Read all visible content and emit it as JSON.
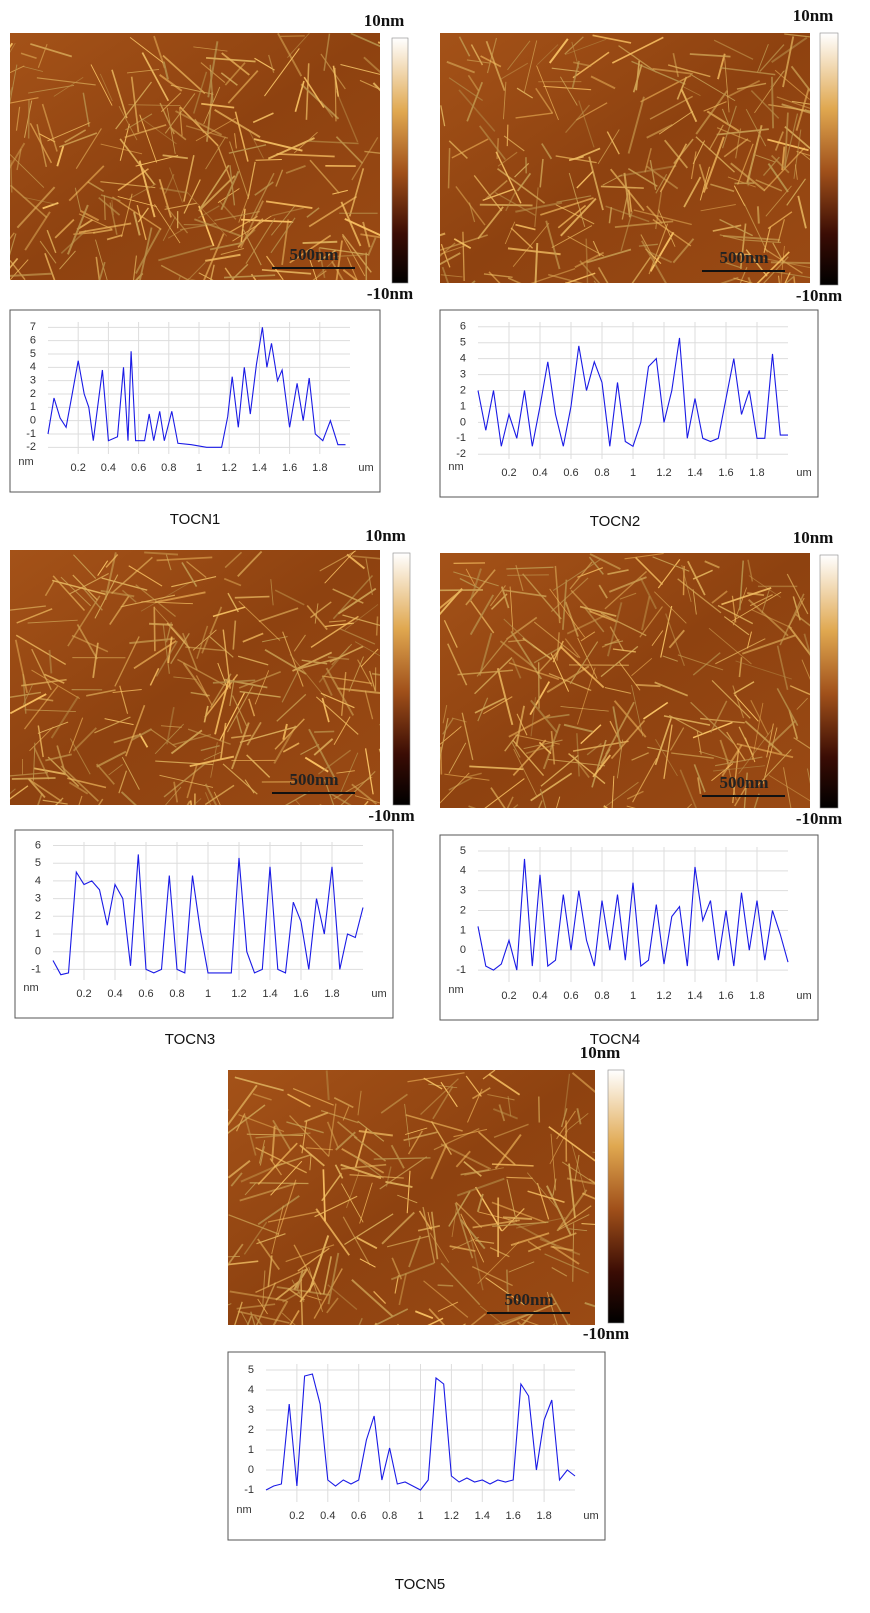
{
  "chart_data": [
    {
      "type": "line",
      "title": "TOCN1",
      "x_label": "um",
      "y_label": "nm",
      "x": [
        0,
        0.04,
        0.08,
        0.12,
        0.16,
        0.2,
        0.24,
        0.27,
        0.3,
        0.36,
        0.4,
        0.46,
        0.5,
        0.53,
        0.55,
        0.58,
        0.64,
        0.67,
        0.7,
        0.74,
        0.77,
        0.82,
        0.86,
        0.95,
        1.05,
        1.15,
        1.19,
        1.22,
        1.26,
        1.3,
        1.34,
        1.38,
        1.42,
        1.45,
        1.48,
        1.52,
        1.55,
        1.6,
        1.65,
        1.69,
        1.73,
        1.77,
        1.82,
        1.87,
        1.92,
        1.97
      ],
      "series": [
        {
          "color": "#1a1ae6",
          "values": [
            -1,
            1.7,
            0.2,
            -0.5,
            2,
            4.5,
            2,
            1,
            -1.5,
            3.8,
            -1.5,
            -1.2,
            4,
            -1.5,
            5.2,
            -1.5,
            -1.5,
            0.5,
            -1.5,
            0.7,
            -1.5,
            0.7,
            -1.7,
            -1.8,
            -2,
            -2,
            0.3,
            3.3,
            -0.5,
            4,
            0.5,
            4.2,
            7,
            4,
            5.8,
            3,
            3.8,
            -0.5,
            2.8,
            0,
            3.2,
            -1,
            -1.5,
            0,
            -1.8,
            -1.8
          ]
        }
      ],
      "xlim": [
        0,
        2
      ],
      "ylim": [
        -2.5,
        7.4
      ],
      "xticks": [
        0.2,
        0.4,
        0.6,
        0.8,
        1,
        1.2,
        1.4,
        1.6,
        1.8
      ],
      "yticks": [
        -2,
        -1,
        0,
        1,
        2,
        3,
        4,
        5,
        6,
        7
      ],
      "grid": true
    },
    {
      "type": "line",
      "title": "TOCN2",
      "x_label": "um",
      "y_label": "nm",
      "x": [
        0,
        0.05,
        0.1,
        0.15,
        0.2,
        0.25,
        0.3,
        0.35,
        0.4,
        0.45,
        0.5,
        0.55,
        0.6,
        0.65,
        0.7,
        0.75,
        0.8,
        0.85,
        0.9,
        0.95,
        1,
        1.05,
        1.1,
        1.15,
        1.2,
        1.25,
        1.3,
        1.35,
        1.4,
        1.45,
        1.5,
        1.55,
        1.6,
        1.65,
        1.7,
        1.75,
        1.8,
        1.85,
        1.9,
        1.95,
        2
      ],
      "series": [
        {
          "color": "#1a1ae6",
          "values": [
            2,
            -0.5,
            2,
            -1.5,
            0.5,
            -1,
            2,
            -1.5,
            1,
            3.8,
            0.5,
            -1.5,
            1,
            4.8,
            2,
            3.8,
            2.5,
            -1.5,
            2.5,
            -1.2,
            -1.5,
            0,
            3.5,
            4,
            0,
            2,
            5.3,
            -1,
            1.5,
            -1,
            -1.2,
            -1,
            1.5,
            4,
            0.5,
            2,
            -1,
            -1,
            4.3,
            -0.8,
            -0.8
          ]
        }
      ],
      "xlim": [
        0,
        2
      ],
      "ylim": [
        -2.3,
        6.3
      ],
      "xticks": [
        0.2,
        0.4,
        0.6,
        0.8,
        1,
        1.2,
        1.4,
        1.6,
        1.8
      ],
      "yticks": [
        -2,
        -1,
        0,
        1,
        2,
        3,
        4,
        5,
        6
      ],
      "grid": true
    },
    {
      "type": "line",
      "title": "TOCN3",
      "x_label": "um",
      "y_label": "nm",
      "x": [
        0,
        0.05,
        0.1,
        0.15,
        0.2,
        0.25,
        0.3,
        0.35,
        0.4,
        0.45,
        0.5,
        0.55,
        0.6,
        0.65,
        0.7,
        0.75,
        0.8,
        0.85,
        0.9,
        0.95,
        1,
        1.05,
        1.1,
        1.15,
        1.2,
        1.25,
        1.3,
        1.35,
        1.4,
        1.45,
        1.5,
        1.55,
        1.6,
        1.65,
        1.7,
        1.75,
        1.8,
        1.85,
        1.9,
        1.95,
        2
      ],
      "series": [
        {
          "color": "#1a1ae6",
          "values": [
            -0.5,
            -1.3,
            -1.2,
            4.5,
            3.8,
            4,
            3.5,
            1.5,
            3.8,
            3,
            -0.8,
            5.5,
            -1,
            -1.2,
            -1,
            4.3,
            -1,
            -1.2,
            4.3,
            1.2,
            -1.2,
            -1.2,
            -1.2,
            -1.2,
            5.3,
            0,
            -1.2,
            -1,
            4.8,
            -1,
            -1.2,
            2.8,
            1.7,
            -1,
            3,
            1,
            4.8,
            -1,
            1,
            0.8,
            2.5
          ]
        }
      ],
      "xlim": [
        0,
        2
      ],
      "ylim": [
        -1.6,
        6.2
      ],
      "xticks": [
        0.2,
        0.4,
        0.6,
        0.8,
        1,
        1.2,
        1.4,
        1.6,
        1.8
      ],
      "yticks": [
        -1,
        0,
        1,
        2,
        3,
        4,
        5,
        6
      ],
      "grid": true
    },
    {
      "type": "line",
      "title": "TOCN4",
      "x_label": "um",
      "y_label": "nm",
      "x": [
        0,
        0.05,
        0.1,
        0.15,
        0.2,
        0.25,
        0.3,
        0.35,
        0.4,
        0.45,
        0.5,
        0.55,
        0.6,
        0.65,
        0.7,
        0.75,
        0.8,
        0.85,
        0.9,
        0.95,
        1,
        1.05,
        1.1,
        1.15,
        1.2,
        1.25,
        1.3,
        1.35,
        1.4,
        1.45,
        1.5,
        1.55,
        1.6,
        1.65,
        1.7,
        1.75,
        1.8,
        1.85,
        1.9,
        1.95,
        2
      ],
      "series": [
        {
          "color": "#1a1ae6",
          "values": [
            1.2,
            -0.8,
            -1,
            -0.7,
            0.5,
            -1,
            4.6,
            -0.8,
            3.8,
            -0.8,
            -0.5,
            2.8,
            0,
            3,
            0.5,
            -0.8,
            2.5,
            0,
            2.8,
            -0.5,
            3.4,
            -0.8,
            -0.5,
            2.3,
            -0.7,
            1.7,
            2.2,
            -0.8,
            4.2,
            1.5,
            2.5,
            -0.5,
            2,
            -0.8,
            2.9,
            0,
            2.5,
            -0.5,
            2,
            0.8,
            -0.6
          ]
        }
      ],
      "xlim": [
        0,
        2
      ],
      "ylim": [
        -1.6,
        5.2
      ],
      "xticks": [
        0.2,
        0.4,
        0.6,
        0.8,
        1,
        1.2,
        1.4,
        1.6,
        1.8
      ],
      "yticks": [
        -1,
        0,
        1,
        2,
        3,
        4,
        5
      ],
      "grid": true
    },
    {
      "type": "line",
      "title": "TOCN5",
      "x_label": "um",
      "y_label": "nm",
      "x": [
        0,
        0.05,
        0.1,
        0.15,
        0.2,
        0.25,
        0.3,
        0.35,
        0.4,
        0.45,
        0.5,
        0.55,
        0.6,
        0.65,
        0.7,
        0.75,
        0.8,
        0.85,
        0.9,
        0.95,
        1,
        1.05,
        1.1,
        1.15,
        1.2,
        1.25,
        1.3,
        1.35,
        1.4,
        1.45,
        1.5,
        1.55,
        1.6,
        1.65,
        1.7,
        1.75,
        1.8,
        1.85,
        1.9,
        1.95,
        2
      ],
      "series": [
        {
          "color": "#1a1ae6",
          "values": [
            -1,
            -0.8,
            -0.7,
            3.3,
            -0.8,
            4.7,
            4.8,
            3.3,
            -0.5,
            -0.8,
            -0.5,
            -0.7,
            -0.5,
            1.5,
            2.7,
            -0.5,
            1.1,
            -0.7,
            -0.6,
            -0.8,
            -1,
            -0.5,
            4.6,
            4.3,
            -0.3,
            -0.6,
            -0.4,
            -0.6,
            -0.5,
            -0.7,
            -0.5,
            -0.6,
            -0.5,
            4.3,
            3.7,
            0,
            2.5,
            3.5,
            -0.5,
            0,
            -0.3
          ]
        }
      ],
      "xlim": [
        0,
        2
      ],
      "ylim": [
        -1.6,
        5.3
      ],
      "xticks": [
        0.2,
        0.4,
        0.6,
        0.8,
        1,
        1.2,
        1.4,
        1.6,
        1.8
      ],
      "yticks": [
        -1,
        0,
        1,
        2,
        3,
        4,
        5
      ],
      "grid": true
    }
  ],
  "images": [
    {
      "colorbar_max": "10nm",
      "colorbar_min": "-10nm",
      "scale_bar": "500nm"
    },
    {
      "colorbar_max": "10nm",
      "colorbar_min": "-10nm",
      "scale_bar": "500nm"
    },
    {
      "colorbar_max": "10nm",
      "colorbar_min": "-10nm",
      "scale_bar": "500nm"
    },
    {
      "colorbar_max": "10nm",
      "colorbar_min": "-10nm",
      "scale_bar": "500nm"
    },
    {
      "colorbar_max": "10nm",
      "colorbar_min": "-10nm",
      "scale_bar": "500nm"
    }
  ]
}
